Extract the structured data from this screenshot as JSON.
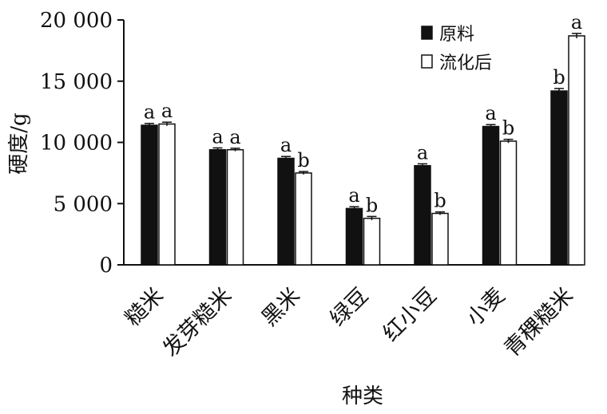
{
  "chart_data": {
    "type": "bar",
    "title": "",
    "xlabel": "种类",
    "ylabel": "硬度/g",
    "ylim": [
      0,
      20000
    ],
    "yticks": [
      0,
      5000,
      10000,
      15000,
      20000
    ],
    "ytick_labels": [
      "0",
      "5 000",
      "10 000",
      "15 000",
      "20 000"
    ],
    "categories": [
      "糙米",
      "发芽糙米",
      "黑米",
      "绿豆",
      "红小豆",
      "小麦",
      "青稞糙米"
    ],
    "series": [
      {
        "name": "原料",
        "color": "#111111",
        "values": [
          11400,
          9400,
          8700,
          4600,
          8100,
          11300,
          14200
        ],
        "errors": [
          150,
          150,
          150,
          150,
          150,
          150,
          200
        ],
        "letters": [
          "a",
          "a",
          "a",
          "a",
          "a",
          "a",
          "b"
        ]
      },
      {
        "name": "流化后",
        "color": "#ffffff",
        "values": [
          11500,
          9400,
          7500,
          3800,
          4200,
          10100,
          18700
        ],
        "errors": [
          150,
          120,
          120,
          150,
          120,
          150,
          200
        ],
        "letters": [
          "a",
          "a",
          "b",
          "b",
          "b",
          "b",
          "a"
        ]
      }
    ],
    "legend_position": "top-right",
    "grid": false
  }
}
